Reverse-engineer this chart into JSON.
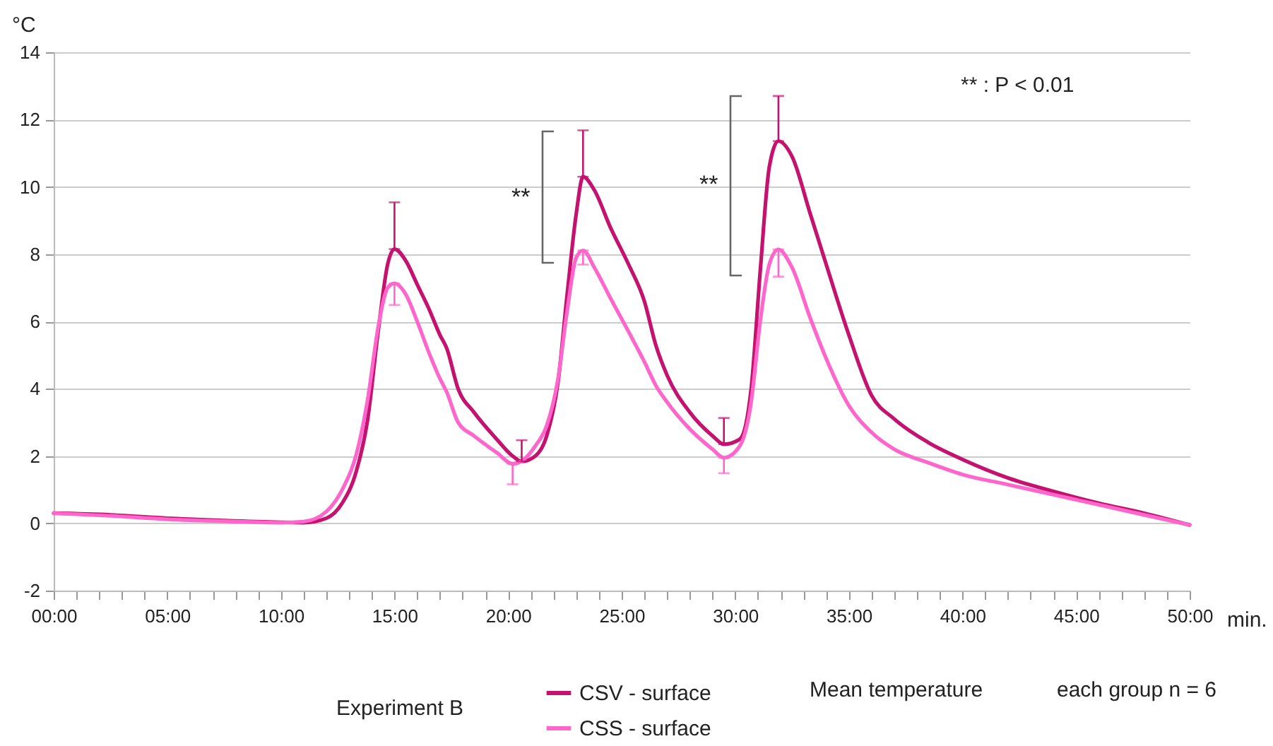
{
  "chart_data": {
    "type": "line",
    "xlabel": "min.",
    "ylabel": "°C",
    "x": [
      0,
      2.5,
      5,
      7.5,
      10,
      11,
      12,
      12.7,
      13.3,
      13.8,
      14.3,
      14.7,
      15,
      15.5,
      16,
      16.5,
      17,
      17.3,
      17.8,
      18.5,
      19.5,
      20.2,
      20.6,
      21.2,
      21.7,
      22.2,
      22.6,
      23,
      23.3,
      23.8,
      24.5,
      25.3,
      26,
      26.5,
      27,
      28,
      29,
      29.5,
      30.2,
      30.7,
      31.1,
      31.5,
      31.9,
      32.5,
      33.3,
      34,
      35,
      36,
      37,
      38.5,
      40,
      42,
      44,
      46,
      48,
      50
    ],
    "series": [
      {
        "name": "CSV - surface",
        "color": "#c4126e",
        "values": [
          0.3,
          0.25,
          0.15,
          0.08,
          0.03,
          0.02,
          0.15,
          0.6,
          1.5,
          3.0,
          5.8,
          7.7,
          8.15,
          7.8,
          7.1,
          6.4,
          5.6,
          5.2,
          4.0,
          3.3,
          2.5,
          2.0,
          1.84,
          2.0,
          2.6,
          4.2,
          6.8,
          9.2,
          10.3,
          9.9,
          8.8,
          7.7,
          6.6,
          5.3,
          4.4,
          3.3,
          2.6,
          2.35,
          2.5,
          4.0,
          7.5,
          10.6,
          11.36,
          10.9,
          9.2,
          7.7,
          5.6,
          3.8,
          3.1,
          2.4,
          1.9,
          1.35,
          0.95,
          0.6,
          0.3,
          -0.05
        ],
        "errors": [
          null,
          null,
          null,
          null,
          null,
          null,
          null,
          null,
          null,
          null,
          null,
          null,
          [
            8.15,
            9.54
          ],
          null,
          null,
          null,
          null,
          null,
          null,
          null,
          null,
          null,
          [
            1.84,
            2.47
          ],
          null,
          null,
          null,
          null,
          null,
          [
            10.3,
            11.68
          ],
          null,
          null,
          null,
          null,
          null,
          null,
          null,
          null,
          [
            2.35,
            3.13
          ],
          null,
          null,
          null,
          null,
          [
            11.36,
            12.7
          ],
          null,
          null,
          null,
          null,
          null,
          null,
          null,
          null,
          null,
          null,
          null,
          null,
          null
        ]
      },
      {
        "name": "CSS - surface",
        "color": "#ff66cc",
        "values": [
          0.3,
          0.22,
          0.12,
          0.06,
          0.02,
          0.05,
          0.35,
          1.0,
          2.0,
          3.6,
          5.9,
          7.0,
          7.13,
          6.8,
          6.0,
          5.1,
          4.3,
          3.9,
          3.0,
          2.6,
          2.1,
          1.77,
          1.85,
          2.3,
          2.9,
          4.3,
          6.3,
          7.9,
          8.11,
          7.6,
          6.7,
          5.7,
          4.8,
          4.1,
          3.6,
          2.8,
          2.2,
          1.95,
          2.3,
          3.6,
          6.0,
          7.7,
          8.14,
          7.6,
          6.1,
          4.9,
          3.5,
          2.7,
          2.2,
          1.8,
          1.45,
          1.15,
          0.85,
          0.55,
          0.25,
          -0.05
        ],
        "errors": [
          null,
          null,
          null,
          null,
          null,
          null,
          null,
          null,
          null,
          null,
          null,
          null,
          [
            6.49,
            7.13
          ],
          null,
          null,
          null,
          null,
          null,
          null,
          null,
          null,
          [
            1.16,
            1.77
          ],
          null,
          null,
          null,
          null,
          null,
          null,
          [
            7.69,
            8.11
          ],
          null,
          null,
          null,
          null,
          null,
          null,
          null,
          null,
          [
            1.49,
            1.95
          ],
          null,
          null,
          null,
          null,
          [
            7.33,
            8.14
          ],
          null,
          null,
          null,
          null,
          null,
          null,
          null,
          null,
          null,
          null,
          null,
          null,
          null
        ]
      }
    ],
    "xlim": [
      0,
      50
    ],
    "xticks": [
      {
        "value": 0,
        "label": "00:00"
      },
      {
        "value": 1,
        "label": null
      },
      {
        "value": 2,
        "label": null
      },
      {
        "value": 3,
        "label": null
      },
      {
        "value": 4,
        "label": null
      },
      {
        "value": 5,
        "label": "05:00"
      },
      {
        "value": 6,
        "label": null
      },
      {
        "value": 7,
        "label": null
      },
      {
        "value": 8,
        "label": null
      },
      {
        "value": 9,
        "label": null
      },
      {
        "value": 10,
        "label": "10:00"
      },
      {
        "value": 11,
        "label": null
      },
      {
        "value": 12,
        "label": null
      },
      {
        "value": 13,
        "label": null
      },
      {
        "value": 14,
        "label": null
      },
      {
        "value": 15,
        "label": "15:00"
      },
      {
        "value": 16,
        "label": null
      },
      {
        "value": 17,
        "label": null
      },
      {
        "value": 18,
        "label": null
      },
      {
        "value": 19,
        "label": null
      },
      {
        "value": 20,
        "label": "20:00"
      },
      {
        "value": 21,
        "label": null
      },
      {
        "value": 22,
        "label": null
      },
      {
        "value": 23,
        "label": null
      },
      {
        "value": 24,
        "label": null
      },
      {
        "value": 25,
        "label": "25:00"
      },
      {
        "value": 26,
        "label": null
      },
      {
        "value": 27,
        "label": null
      },
      {
        "value": 28,
        "label": null
      },
      {
        "value": 29,
        "label": null
      },
      {
        "value": 30,
        "label": "30:00"
      },
      {
        "value": 31,
        "label": null
      },
      {
        "value": 32,
        "label": null
      },
      {
        "value": 33,
        "label": null
      },
      {
        "value": 34,
        "label": null
      },
      {
        "value": 35,
        "label": "35:00"
      },
      {
        "value": 36,
        "label": null
      },
      {
        "value": 37,
        "label": null
      },
      {
        "value": 38,
        "label": null
      },
      {
        "value": 39,
        "label": null
      },
      {
        "value": 40,
        "label": "40:00"
      },
      {
        "value": 41,
        "label": null
      },
      {
        "value": 42,
        "label": null
      },
      {
        "value": 43,
        "label": null
      },
      {
        "value": 44,
        "label": null
      },
      {
        "value": 45,
        "label": "45:00"
      },
      {
        "value": 46,
        "label": null
      },
      {
        "value": 47,
        "label": null
      },
      {
        "value": 48,
        "label": null
      },
      {
        "value": 49,
        "label": null
      },
      {
        "value": 50,
        "label": "50:00"
      }
    ],
    "ylim": [
      -2,
      14
    ],
    "yticks": [
      -2,
      0,
      2,
      4,
      6,
      8,
      10,
      12,
      14
    ],
    "grid": "y",
    "legend": "bottom",
    "marker": "none",
    "line_style": "solid",
    "annotations": [
      "**",
      "**",
      "** : P < 0.01",
      "Experiment B",
      "Mean temperature",
      "each group n = 6"
    ]
  }
}
